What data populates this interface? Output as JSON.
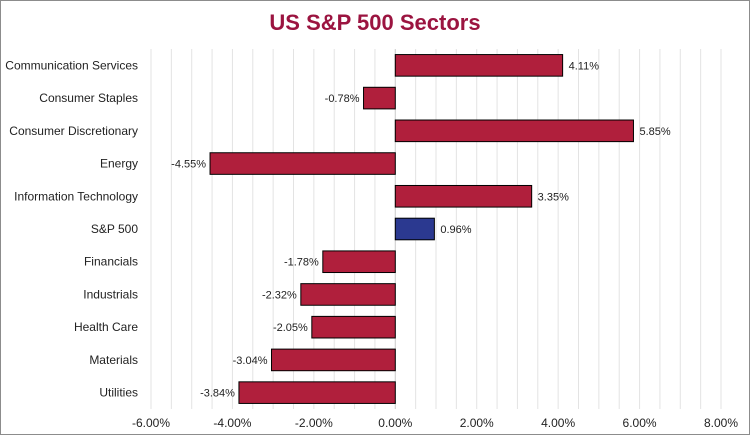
{
  "chart_data": {
    "type": "bar",
    "orientation": "horizontal",
    "title": "US S&P 500 Sectors",
    "categories": [
      "Communication Services",
      "Consumer Staples",
      "Consumer Discretionary",
      "Energy",
      "Information Technology",
      "S&P 500",
      "Financials",
      "Industrials",
      "Health Care",
      "Materials",
      "Utilities"
    ],
    "values": [
      4.11,
      -0.78,
      5.85,
      -4.55,
      3.35,
      0.96,
      -1.78,
      -2.32,
      -2.05,
      -3.04,
      -3.84
    ],
    "value_labels": [
      "4.11%",
      "-0.78%",
      "5.85%",
      "-4.55%",
      "3.35%",
      "0.96%",
      "-1.78%",
      "-2.32%",
      "-2.05%",
      "-3.04%",
      "-3.84%"
    ],
    "xlim": [
      -6,
      8
    ],
    "x_ticks": [
      -6,
      -4,
      -2,
      0,
      2,
      4,
      6,
      8
    ],
    "x_tick_labels": [
      "-6.00%",
      "-4.00%",
      "-2.00%",
      "0.00%",
      "2.00%",
      "4.00%",
      "6.00%",
      "8.00%"
    ],
    "xlabel": "",
    "ylabel": "",
    "grid": "vertical",
    "colors": {
      "title": "#9b1440",
      "bar": "#b01f3c",
      "highlight": "#2b3990",
      "highlight_category": "S&P 500"
    }
  }
}
